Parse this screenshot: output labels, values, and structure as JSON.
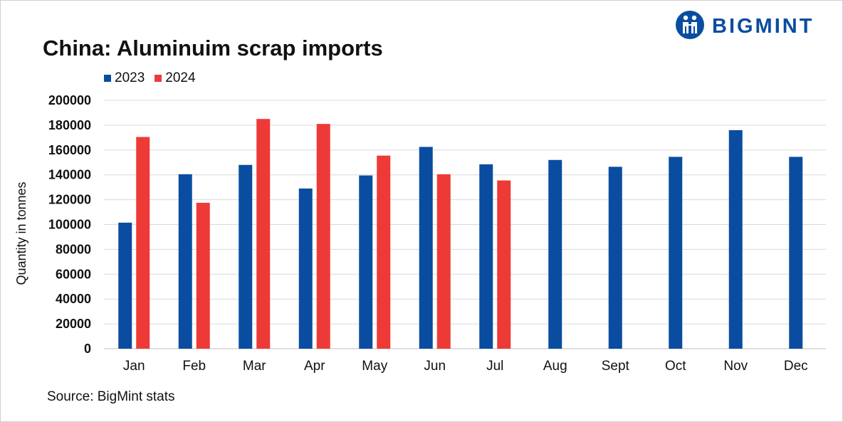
{
  "brand": {
    "name": "BIGMINT",
    "logo_icon": "bigmint-logo-icon"
  },
  "source": "Source: BigMint stats",
  "colors": {
    "series_2023": "#0a4da0",
    "series_2024": "#ee3a36",
    "grid": "#d9d9d9",
    "brand": "#0a4da0"
  },
  "chart_data": {
    "type": "bar",
    "title": "China: Aluminuim scrap imports",
    "xlabel": "",
    "ylabel": "Quantity in tonnes",
    "ylim": [
      0,
      200000
    ],
    "yticks": [
      "0",
      "20000",
      "40000",
      "60000",
      "80000",
      "100000",
      "120000",
      "140000",
      "160000",
      "180000",
      "200000"
    ],
    "grid": true,
    "legend_position": "top-left",
    "categories": [
      "Jan",
      "Feb",
      "Mar",
      "Apr",
      "May",
      "Jun",
      "Jul",
      "Aug",
      "Sept",
      "Oct",
      "Nov",
      "Dec"
    ],
    "series": [
      {
        "name": "2023",
        "color": "#0a4da0",
        "values": [
          101500,
          140500,
          148000,
          129000,
          139500,
          162500,
          148500,
          152000,
          146500,
          154500,
          176000,
          154500
        ]
      },
      {
        "name": "2024",
        "color": "#ee3a36",
        "values": [
          170500,
          117500,
          185000,
          181000,
          155500,
          140500,
          135500,
          null,
          null,
          null,
          null,
          null
        ]
      }
    ]
  }
}
